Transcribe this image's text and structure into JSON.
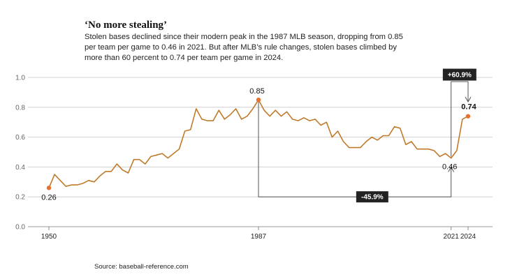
{
  "header": {
    "title": "‘No more stealing’",
    "subtitle": "Stolen bases declined since their modern peak in the 1987 MLB season, dropping from 0.85 per team per game to 0.46 in 2021. But after MLB’s rule changes, stolen bases climbed by more than 60 percent to 0.74 per team per game in 2024."
  },
  "source": "Source: baseball-reference.com",
  "colors": {
    "line": "#c07a2a",
    "point": "#e8722c",
    "annotation_box": "#222222",
    "grid": "#d0d0d0",
    "connector": "#555555"
  },
  "chart_data": {
    "type": "line",
    "title": "‘No more stealing’",
    "xlabel": "",
    "ylabel": "",
    "xlim": [
      1950,
      2024
    ],
    "ylim": [
      0,
      1.0
    ],
    "y_ticks": [
      0.0,
      0.2,
      0.4,
      0.6,
      0.8,
      1.0
    ],
    "y_tick_labels": [
      "0.0",
      "0.2",
      "0.4",
      "0.6",
      "0.8",
      "1.0"
    ],
    "x_ticks": [
      1950,
      1987,
      2021,
      2024
    ],
    "x_tick_labels": [
      "1950",
      "1987",
      "2021",
      "2024"
    ],
    "grid": true,
    "x": [
      1950,
      1951,
      1952,
      1953,
      1954,
      1955,
      1956,
      1957,
      1958,
      1959,
      1960,
      1961,
      1962,
      1963,
      1964,
      1965,
      1966,
      1967,
      1968,
      1969,
      1970,
      1971,
      1972,
      1973,
      1974,
      1975,
      1976,
      1977,
      1978,
      1979,
      1980,
      1981,
      1982,
      1983,
      1984,
      1985,
      1986,
      1987,
      1988,
      1989,
      1990,
      1991,
      1992,
      1993,
      1994,
      1995,
      1996,
      1997,
      1998,
      1999,
      2000,
      2001,
      2002,
      2003,
      2004,
      2005,
      2006,
      2007,
      2008,
      2009,
      2010,
      2011,
      2012,
      2013,
      2014,
      2015,
      2016,
      2017,
      2018,
      2019,
      2020,
      2021,
      2022,
      2023,
      2024
    ],
    "y": [
      0.26,
      0.35,
      0.31,
      0.27,
      0.28,
      0.28,
      0.29,
      0.31,
      0.3,
      0.34,
      0.37,
      0.37,
      0.42,
      0.38,
      0.36,
      0.45,
      0.45,
      0.42,
      0.47,
      0.48,
      0.49,
      0.46,
      0.49,
      0.52,
      0.64,
      0.65,
      0.79,
      0.72,
      0.71,
      0.71,
      0.78,
      0.72,
      0.75,
      0.79,
      0.72,
      0.74,
      0.79,
      0.85,
      0.78,
      0.74,
      0.78,
      0.74,
      0.77,
      0.72,
      0.71,
      0.73,
      0.71,
      0.72,
      0.68,
      0.7,
      0.6,
      0.64,
      0.57,
      0.53,
      0.53,
      0.53,
      0.57,
      0.6,
      0.58,
      0.61,
      0.61,
      0.67,
      0.66,
      0.55,
      0.57,
      0.52,
      0.52,
      0.52,
      0.51,
      0.47,
      0.49,
      0.46,
      0.51,
      0.72,
      0.74
    ],
    "highlighted_points": [
      {
        "x": 1950,
        "y": 0.26,
        "label": "0.26"
      },
      {
        "x": 1987,
        "y": 0.85,
        "label": "0.85"
      },
      {
        "x": 2021,
        "y": 0.46,
        "label": "0.46"
      },
      {
        "x": 2024,
        "y": 0.74,
        "label": "0.74"
      }
    ],
    "annotations": [
      {
        "text": "-45.9%",
        "from_x": 1987,
        "to_x": 2021
      },
      {
        "text": "+60.9%",
        "from_x": 2021,
        "to_x": 2024
      }
    ]
  }
}
